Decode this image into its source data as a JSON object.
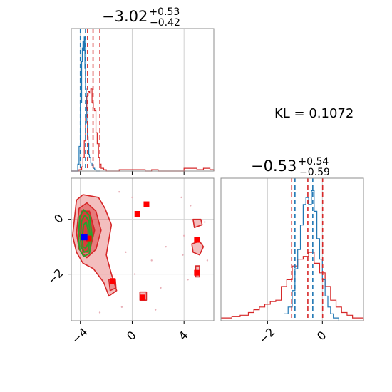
{
  "chart_data": {
    "type": "corner",
    "kl_label": "KL = 0.1072",
    "colors": {
      "red": "#d62728",
      "blue": "#1f77b4",
      "green": "#2ca02c",
      "marker_red": "#ff0000",
      "marker_blue": "#0000ff"
    },
    "panels": [
      {
        "id": "hist-param1",
        "type": "histogram",
        "title": {
          "main": "−3.02",
          "sup": "+0.53",
          "sub": "−0.42"
        },
        "xlim": [
          -4.7,
          6.3
        ],
        "x_ticks": [
          -4,
          0,
          4
        ],
        "x_tick_labels": [
          "−4",
          "0",
          "4"
        ],
        "show_tick_labels": false,
        "red_quantiles": [
          -3.44,
          -3.02,
          -2.49
        ],
        "blue_quantiles": [
          -4.0,
          -3.6
        ],
        "series": [
          {
            "name": "red",
            "x": [
              -4.7,
              -4.3,
              -4.1,
              -3.9,
              -3.8,
              -3.7,
              -3.6,
              -3.5,
              -3.4,
              -3.3,
              -3.2,
              -3.1,
              -3.0,
              -2.9,
              -2.8,
              -2.7,
              -2.6,
              -2.5,
              -2.4,
              -2.2,
              -2.0,
              -1.8,
              -1.5,
              -1.2,
              -1.0,
              0.0,
              1.0,
              1.5,
              2.0,
              3.0,
              4.0,
              5.0,
              5.5,
              6.0,
              6.3
            ],
            "y": [
              0,
              0,
              0.01,
              0.03,
              0.1,
              0.22,
              0.4,
              0.55,
              0.58,
              0.57,
              0.6,
              0.5,
              0.46,
              0.44,
              0.28,
              0.2,
              0.1,
              0.05,
              0.02,
              0.01,
              0,
              0,
              0,
              0,
              0.01,
              0.01,
              0,
              0.01,
              0,
              0,
              0.02,
              0.01,
              0.02,
              0.01,
              0
            ]
          },
          {
            "name": "blue",
            "x": [
              -4.7,
              -4.3,
              -4.2,
              -4.1,
              -4.0,
              -3.9,
              -3.85,
              -3.8,
              -3.75,
              -3.7,
              -3.65,
              -3.6,
              -3.55,
              -3.5,
              -3.45,
              -3.4,
              -3.35,
              -3.3,
              -3.2,
              -3.1,
              -3.0,
              -2.9,
              -2.8,
              -2.5
            ],
            "y": [
              0,
              0,
              0.05,
              0.18,
              0.5,
              0.8,
              0.9,
              0.95,
              0.88,
              0.98,
              0.75,
              0.6,
              0.45,
              0.35,
              0.25,
              0.2,
              0.12,
              0.1,
              0.06,
              0.04,
              0.02,
              0.01,
              0,
              0
            ]
          }
        ]
      },
      {
        "id": "hist-param2",
        "type": "histogram",
        "title": {
          "main": "−0.53",
          "sup": "+0.54",
          "sub": "−0.59"
        },
        "xlim": [
          -3.7,
          1.5
        ],
        "x_ticks": [
          -2,
          0
        ],
        "x_tick_labels": [
          "−2",
          "0"
        ],
        "red_quantiles": [
          -1.12,
          -0.53,
          0.01
        ],
        "blue_quantiles": [
          -1.0,
          -0.35
        ],
        "series": [
          {
            "name": "red",
            "x": [
              -3.7,
              -3.3,
              -3.0,
              -2.7,
              -2.5,
              -2.3,
              -2.1,
              -1.9,
              -1.7,
              -1.5,
              -1.3,
              -1.1,
              -0.9,
              -0.7,
              -0.5,
              -0.3,
              -0.1,
              0.1,
              0.3,
              0.5,
              0.7,
              0.9,
              1.1,
              1.5
            ],
            "y": [
              0.02,
              0.03,
              0.04,
              0.06,
              0.08,
              0.1,
              0.12,
              0.14,
              0.15,
              0.25,
              0.3,
              0.4,
              0.45,
              0.47,
              0.5,
              0.42,
              0.35,
              0.25,
              0.15,
              0.1,
              0.06,
              0.04,
              0.02,
              0
            ]
          },
          {
            "name": "blue",
            "x": [
              -1.4,
              -1.25,
              -1.1,
              -1.0,
              -0.9,
              -0.8,
              -0.7,
              -0.6,
              -0.5,
              -0.4,
              -0.3,
              -0.2,
              -0.1,
              0.0,
              0.1,
              0.2,
              0.3,
              0.4,
              0.6
            ],
            "y": [
              0.05,
              0.1,
              0.22,
              0.38,
              0.52,
              0.7,
              0.85,
              0.9,
              0.85,
              0.95,
              0.8,
              0.6,
              0.45,
              0.3,
              0.18,
              0.1,
              0.05,
              0.02,
              0
            ]
          }
        ]
      },
      {
        "id": "scatter-2d",
        "type": "scatter",
        "xlim": [
          -4.7,
          6.3
        ],
        "ylim": [
          -3.7,
          1.5
        ],
        "x_ticks": [
          -4,
          0,
          4
        ],
        "x_tick_labels": [
          "−4",
          "0",
          "4"
        ],
        "y_ticks": [
          -2,
          0
        ],
        "y_tick_labels": [
          "−2",
          "0"
        ],
        "red_markers": [
          [
            0.4,
            0.2
          ],
          [
            1.1,
            0.55
          ],
          [
            -3.35,
            -0.7
          ],
          [
            -1.5,
            -2.25
          ],
          [
            0.8,
            -2.85
          ],
          [
            5.0,
            -0.75
          ],
          [
            5.0,
            -1.95
          ]
        ],
        "blue_markers": [
          [
            -3.7,
            -0.65
          ]
        ],
        "red_contours": [
          [
            [
              -4.6,
              -0.6
            ],
            [
              -4.3,
              0.7
            ],
            [
              -3.8,
              0.9
            ],
            [
              -2.6,
              0.8
            ],
            [
              -2.1,
              0.4
            ],
            [
              -1.6,
              -0.2
            ],
            [
              -2.0,
              -1.3
            ],
            [
              -1.6,
              -2.0
            ],
            [
              -1.2,
              -2.6
            ],
            [
              -1.8,
              -2.8
            ],
            [
              -2.2,
              -2.3
            ],
            [
              -3.0,
              -1.8
            ],
            [
              -3.8,
              -1.6
            ],
            [
              -4.3,
              -1.2
            ]
          ],
          [
            [
              -4.3,
              -0.5
            ],
            [
              -4.1,
              0.4
            ],
            [
              -3.5,
              0.6
            ],
            [
              -2.8,
              0.3
            ],
            [
              -2.4,
              -0.4
            ],
            [
              -2.8,
              -1.1
            ],
            [
              -3.5,
              -1.4
            ],
            [
              -4.1,
              -1.1
            ]
          ],
          [
            [
              -4.1,
              -0.5
            ],
            [
              -3.9,
              0.3
            ],
            [
              -3.3,
              0.3
            ],
            [
              -2.9,
              -0.4
            ],
            [
              -3.3,
              -1.2
            ],
            [
              -3.8,
              -1.2
            ]
          ],
          [
            [
              -1.8,
              -2.2
            ],
            [
              -1.3,
              -2.2
            ],
            [
              -1.25,
              -2.5
            ],
            [
              -1.7,
              -2.6
            ]
          ],
          [
            [
              4.7,
              0.0
            ],
            [
              5.3,
              0.0
            ],
            [
              5.4,
              -0.2
            ],
            [
              4.8,
              -0.3
            ]
          ],
          [
            [
              4.6,
              -0.9
            ],
            [
              5.2,
              -0.8
            ],
            [
              5.5,
              -1.0
            ],
            [
              5.2,
              -1.3
            ],
            [
              4.7,
              -1.2
            ]
          ],
          [
            [
              4.9,
              -1.7
            ],
            [
              5.2,
              -1.7
            ],
            [
              5.2,
              -2.1
            ],
            [
              4.9,
              -2.1
            ]
          ],
          [
            [
              0.6,
              -2.65
            ],
            [
              1.1,
              -2.65
            ],
            [
              1.1,
              -2.95
            ],
            [
              0.6,
              -2.95
            ]
          ]
        ],
        "green_contours": [
          [
            [
              -4.15,
              -0.65
            ],
            [
              -4.05,
              0.1
            ],
            [
              -3.75,
              0.35
            ],
            [
              -3.3,
              0.15
            ],
            [
              -3.1,
              -0.6
            ],
            [
              -3.3,
              -1.25
            ],
            [
              -3.75,
              -1.35
            ],
            [
              -4.05,
              -1.1
            ]
          ],
          [
            [
              -4.0,
              -0.65
            ],
            [
              -3.9,
              -0.05
            ],
            [
              -3.65,
              0.15
            ],
            [
              -3.35,
              -0.05
            ],
            [
              -3.25,
              -0.65
            ],
            [
              -3.4,
              -1.15
            ],
            [
              -3.7,
              -1.2
            ],
            [
              -3.95,
              -1.0
            ]
          ],
          [
            [
              -3.85,
              -0.65
            ],
            [
              -3.75,
              -0.2
            ],
            [
              -3.55,
              -0.1
            ],
            [
              -3.4,
              -0.4
            ],
            [
              -3.4,
              -0.9
            ],
            [
              -3.6,
              -1.05
            ],
            [
              -3.8,
              -1.0
            ]
          ]
        ],
        "faint_points": [
          [
            -1.0,
            1.0
          ],
          [
            -0.5,
            -1.2
          ],
          [
            0.2,
            -2.0
          ],
          [
            1.5,
            -1.5
          ],
          [
            2.2,
            -2.5
          ],
          [
            3.8,
            0.8
          ],
          [
            4.0,
            -0.6
          ],
          [
            3.9,
            -1.3
          ],
          [
            4.3,
            -2.2
          ],
          [
            5.6,
            -0.1
          ],
          [
            5.8,
            -1.5
          ],
          [
            4.5,
            0.5
          ],
          [
            -0.8,
            -3.2
          ],
          [
            1.8,
            -3.3
          ],
          [
            -2.5,
            -3.4
          ],
          [
            0.0,
            0.8
          ],
          [
            2.6,
            -1.0
          ]
        ]
      }
    ]
  }
}
